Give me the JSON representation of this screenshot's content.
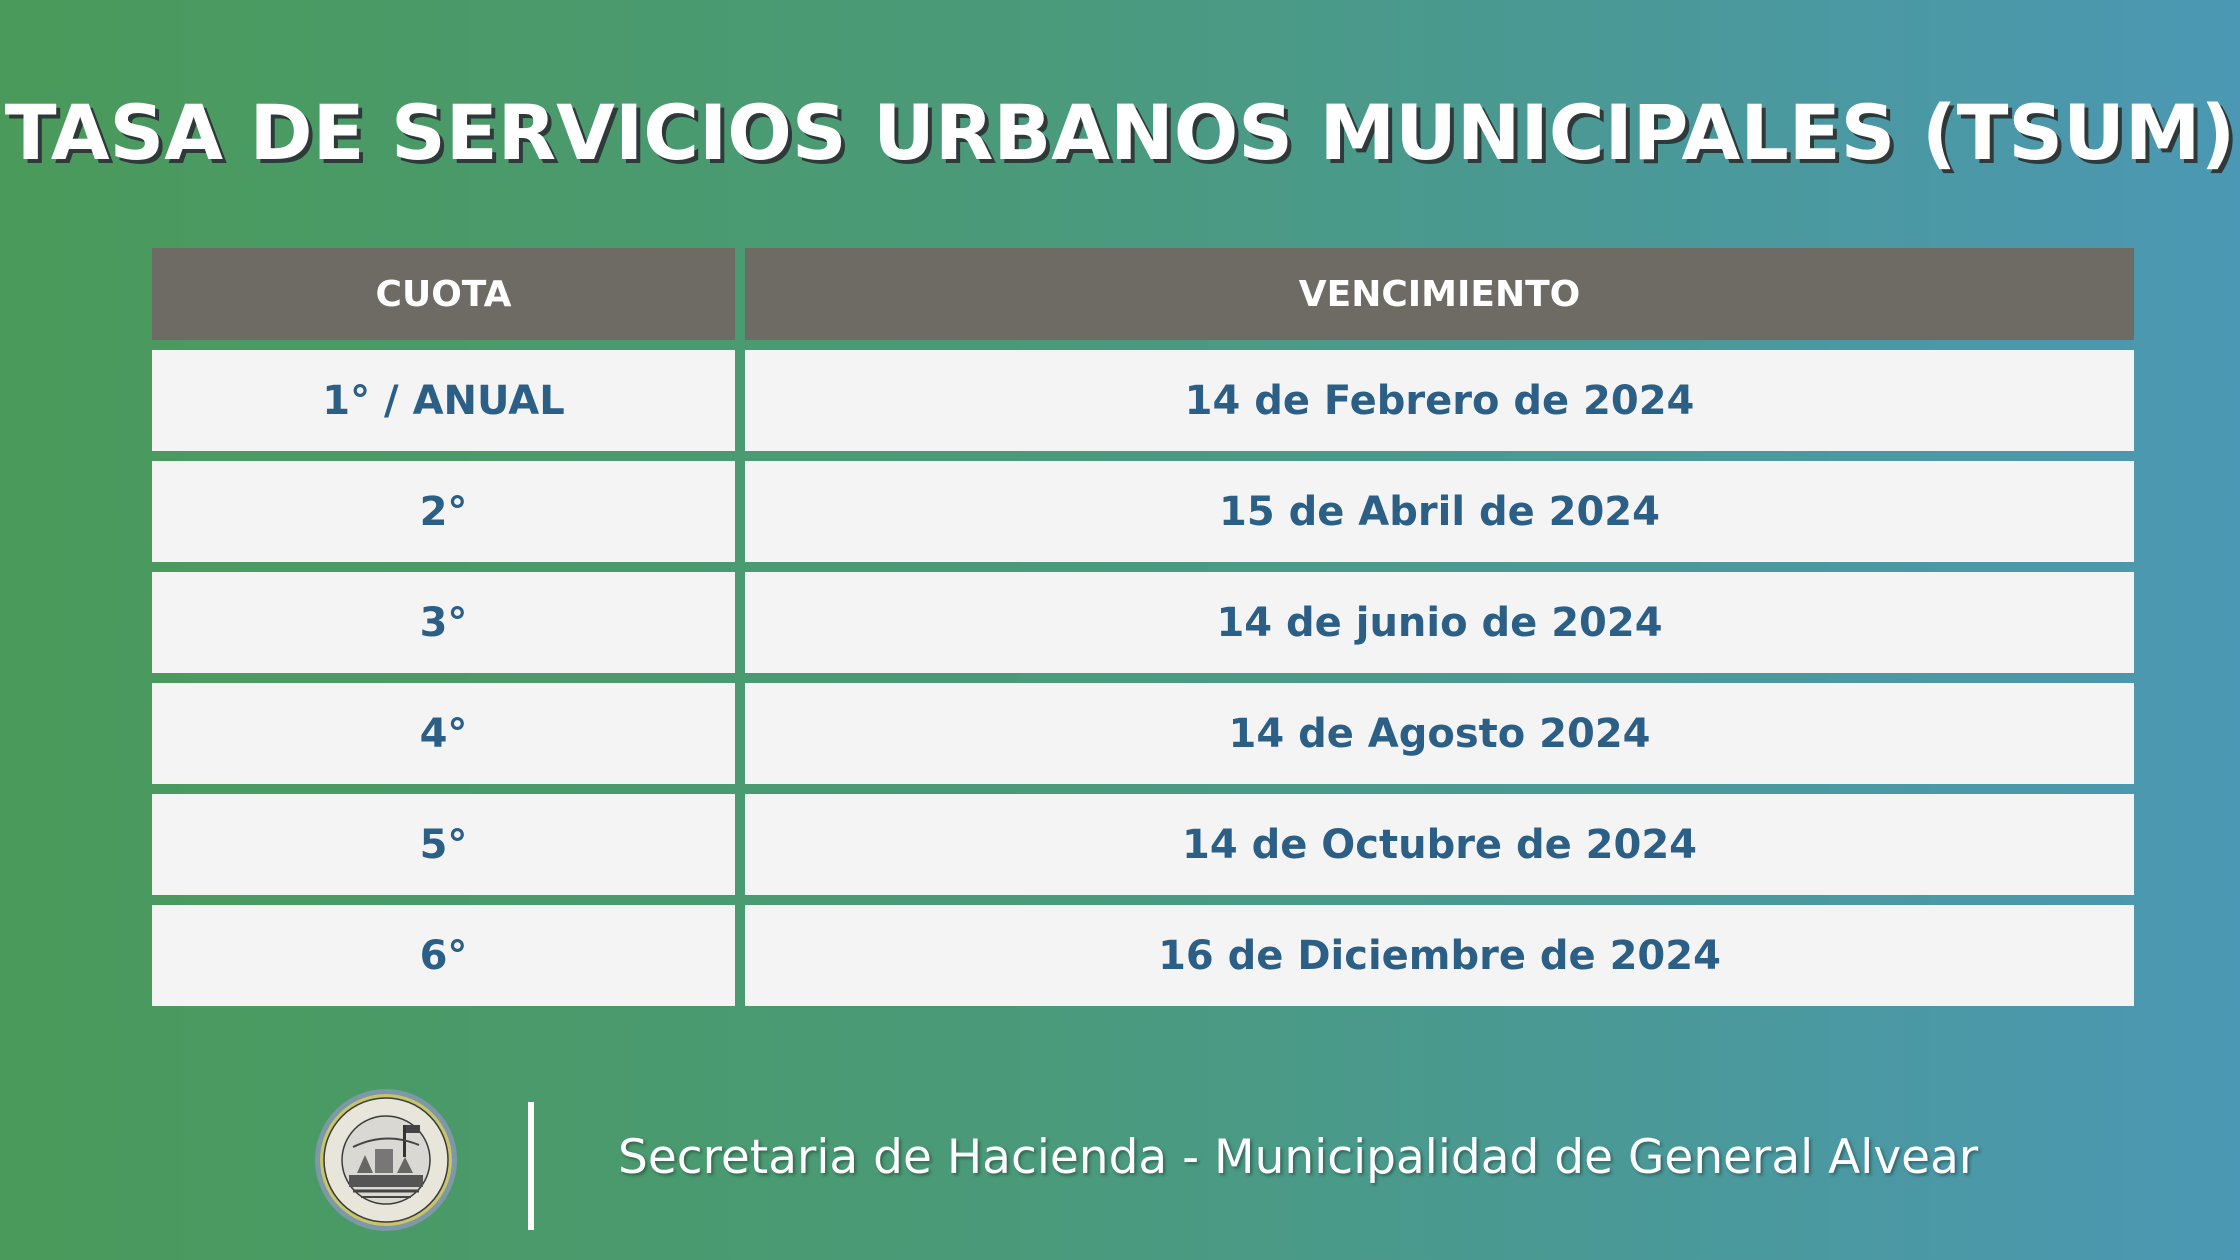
{
  "title": "TASA DE SERVICIOS URBANOS MUNICIPALES (TSUM)",
  "table": {
    "headers": [
      "CUOTA",
      "VENCIMIENTO"
    ],
    "rows": [
      [
        "1° / ANUAL",
        "14 de Febrero de 2024"
      ],
      [
        "2°",
        "15 de Abril de 2024"
      ],
      [
        "3°",
        "14 de junio de 2024"
      ],
      [
        "4°",
        "14 de Agosto 2024"
      ],
      [
        "5°",
        "14 de Octubre de 2024"
      ],
      [
        "6°",
        "16 de Diciembre de 2024"
      ]
    ]
  },
  "footer": {
    "logo_text": "MUNICIPALIDAD · GENERAL ALVEAR B.S.AS.",
    "text": "Secretaria de Hacienda - Municipalidad de General Alvear"
  },
  "colors": {
    "header_bg": "#6e6a64",
    "cell_bg": "#f4f4f4",
    "cell_text": "#2b5f86",
    "gradient_start": "#4a9a5b",
    "gradient_end": "#4b98b4"
  }
}
